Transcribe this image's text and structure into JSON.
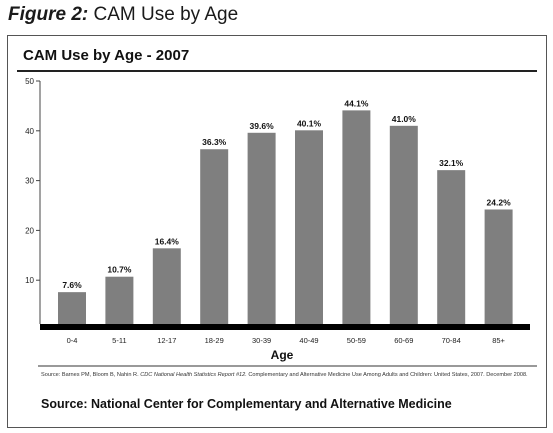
{
  "figure": {
    "label": "Figure 2:",
    "caption": "CAM Use by Age"
  },
  "chart_data": {
    "type": "bar",
    "title": "CAM Use by Age - 2007",
    "xlabel": "Age",
    "ylabel": "",
    "categories": [
      "0-4",
      "5-11",
      "12-17",
      "18-29",
      "30-39",
      "40-49",
      "50-59",
      "60-69",
      "70-84",
      "85+"
    ],
    "values": [
      7.6,
      10.7,
      16.4,
      36.3,
      39.6,
      40.1,
      44.1,
      41.0,
      32.1,
      24.2
    ],
    "data_labels": [
      "7.6%",
      "10.7%",
      "16.4%",
      "36.3%",
      "39.6%",
      "40.1%",
      "44.1%",
      "41.0%",
      "32.1%",
      "24.2%"
    ],
    "ylim": [
      0,
      50
    ],
    "yticks": [
      10,
      20,
      30,
      40,
      50
    ],
    "grid": false,
    "legend": "none",
    "bar_color": "#7f7f7f",
    "baseline_color": "#000000"
  },
  "citation": {
    "before": "Source: Barnes PM, Bloom B, Nahin R.",
    "journal": "CDC National Health Statistics Report #12.",
    "after": "Complementary and Alternative Medicine Use Among Adults and Children: United States, 2007. December 2008."
  },
  "source": "Source: National Center for Complementary and Alternative Medicine"
}
